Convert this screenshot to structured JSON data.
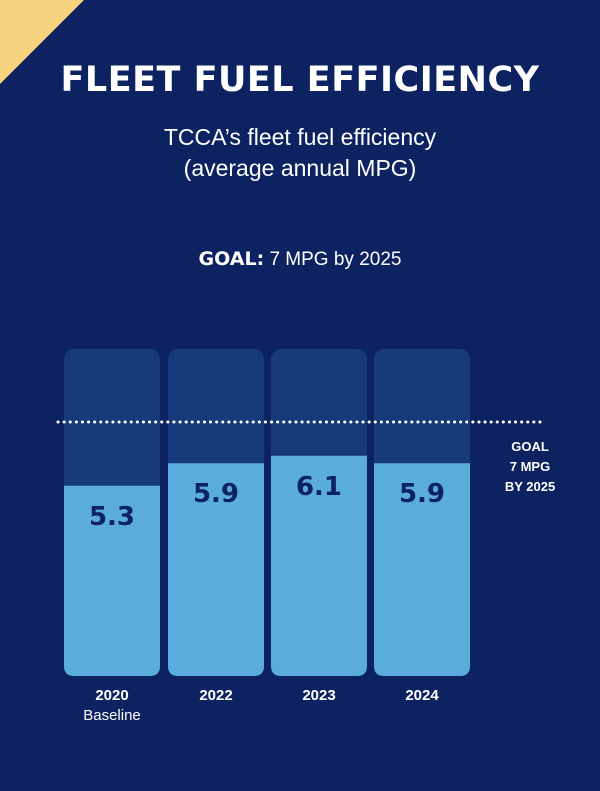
{
  "header": {
    "title": "FLEET FUEL EFFICIENCY",
    "subtitle_line1": "TCCA’s fleet fuel efficiency",
    "subtitle_line2": "(average annual MPG)",
    "goal_prefix": "GOAL:",
    "goal_text": " 7 MPG by 2025"
  },
  "goal_annotation": {
    "line1": "GOAL",
    "line2": "7 MPG",
    "line3": "BY 2025"
  },
  "colors": {
    "background": "#0d2260",
    "bar_track": "#173a7a",
    "bar_fill": "#5aacdd",
    "accent": "#f9d27f"
  },
  "chart_data": {
    "type": "bar",
    "title": "FLEET FUEL EFFICIENCY",
    "subtitle": "TCCA’s fleet fuel efficiency (average annual MPG)",
    "categories": [
      "2020",
      "2022",
      "2023",
      "2024"
    ],
    "category_sublabels": [
      "Baseline",
      "",
      "",
      ""
    ],
    "values": [
      5.3,
      5.9,
      6.1,
      5.9
    ],
    "value_labels": [
      "5.3",
      "5.9",
      "6.1",
      "5.9"
    ],
    "goal_value": 7,
    "xlabel": "",
    "ylabel": "MPG",
    "ylim": [
      0,
      8
    ]
  }
}
